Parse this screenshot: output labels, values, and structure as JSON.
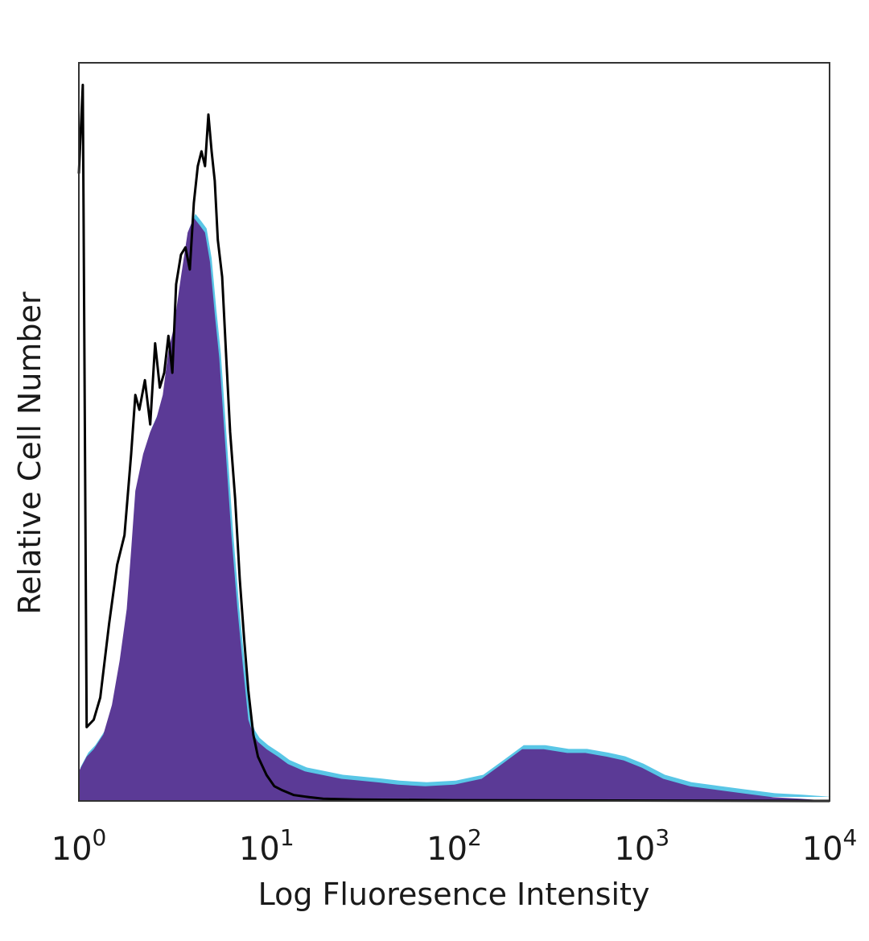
{
  "chart_data": {
    "type": "area",
    "title": "",
    "xlabel": "Log Fluoresence Intensity",
    "ylabel": "Relative Cell Number",
    "x_scale": "log",
    "xlim": [
      1,
      10000
    ],
    "ylim": [
      0,
      100
    ],
    "grid": false,
    "x_ticks": [
      {
        "value": 1,
        "base": "10",
        "exp": "0"
      },
      {
        "value": 10,
        "base": "10",
        "exp": "1"
      },
      {
        "value": 100,
        "base": "10",
        "exp": "2"
      },
      {
        "value": 1000,
        "base": "10",
        "exp": "3"
      },
      {
        "value": 10000,
        "base": "10",
        "exp": "4"
      }
    ],
    "series": [
      {
        "style": "filled",
        "fill_color": "#5b3a96",
        "edge_color": "#59c6e6",
        "x": [
          1.0,
          1.1,
          1.2,
          1.35,
          1.5,
          1.65,
          1.8,
          1.9,
          2.0,
          2.2,
          2.4,
          2.6,
          2.8,
          3.0,
          3.2,
          3.5,
          3.8,
          4.1,
          4.4,
          4.7,
          5.0,
          5.3,
          5.6,
          6.0,
          6.5,
          7.0,
          7.5,
          8.0,
          8.5,
          9.0,
          10.0,
          11.5,
          13.0,
          16.0,
          20.0,
          25.0,
          30.0,
          40.0,
          50.0,
          70.0,
          100.0,
          140.0,
          180.0,
          230.0,
          300.0,
          400.0,
          500.0,
          650.0,
          800.0,
          1000.0,
          1300.0,
          1800.0,
          2500.0,
          3500.0,
          5000.0,
          7000.0,
          10000.0
        ],
        "y": [
          4,
          6,
          7,
          9,
          13,
          19,
          26,
          34,
          42,
          47,
          50,
          52,
          55,
          61,
          64,
          71,
          77,
          79,
          78,
          77,
          73,
          66,
          60,
          49,
          36,
          26,
          18,
          11,
          9,
          8,
          7,
          6,
          5,
          4,
          3.5,
          3,
          2.8,
          2.5,
          2.2,
          2,
          2.2,
          3,
          5,
          7,
          7,
          6.5,
          6.5,
          6,
          5.5,
          4.5,
          3,
          2,
          1.5,
          1,
          0.5,
          0.3,
          0
        ]
      },
      {
        "style": "line",
        "line_color": "#000000",
        "x": [
          1.0,
          1.05,
          1.1,
          1.2,
          1.3,
          1.45,
          1.6,
          1.75,
          1.9,
          2.0,
          2.1,
          2.25,
          2.4,
          2.55,
          2.7,
          2.85,
          3.0,
          3.15,
          3.3,
          3.5,
          3.7,
          3.9,
          4.1,
          4.3,
          4.5,
          4.7,
          4.9,
          5.1,
          5.3,
          5.5,
          5.8,
          6.1,
          6.4,
          6.8,
          7.2,
          7.6,
          8.0,
          8.5,
          9.0,
          10.0,
          11.0,
          12.0,
          14.0,
          17.0,
          20.0,
          30.0,
          100.0,
          10000.0
        ],
        "y": [
          85,
          97,
          10,
          11,
          14,
          24,
          32,
          36,
          47,
          55,
          53,
          57,
          51,
          62,
          56,
          58,
          63,
          58,
          70,
          74,
          75,
          72,
          81,
          86,
          88,
          86,
          93,
          88,
          84,
          76,
          71,
          60,
          50,
          41,
          30,
          22,
          15,
          9,
          6,
          3.5,
          2,
          1.5,
          0.8,
          0.5,
          0.3,
          0.2,
          0.1,
          0
        ]
      }
    ]
  }
}
